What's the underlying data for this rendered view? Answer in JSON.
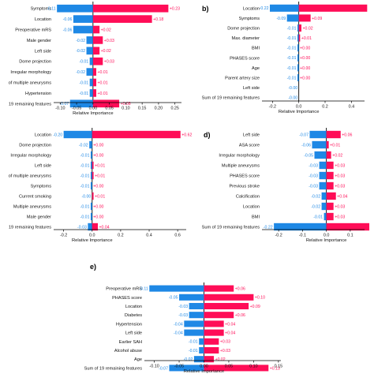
{
  "colors": {
    "positive": "#ff0d57",
    "negative": "#1e88e5",
    "axis": "#000000"
  },
  "chart_data": [
    {
      "panel": "a",
      "type": "bar",
      "orientation": "horizontal",
      "xlabel": "Relative Importance",
      "xlim": [
        -0.12,
        0.27
      ],
      "xticks": [
        "-0.10",
        "-0.05",
        "0.00",
        "0.05",
        "0.10",
        "0.15",
        "0.20",
        "0.25"
      ],
      "xtick_values": [
        -0.1,
        -0.05,
        0.0,
        0.05,
        0.1,
        0.15,
        0.2,
        0.25
      ],
      "categories": [
        "Symptoms",
        "Location",
        "Preoperative mRS",
        "Male gender",
        "Left side",
        "Dome projection",
        "Irregular morphology",
        "of multiple aneurysms",
        "Hypertension",
        "19 remaining features"
      ],
      "segments": [
        [
          -0.11,
          0.23
        ],
        [
          -0.06,
          0.18
        ],
        [
          -0.06,
          0.02
        ],
        [
          -0.02,
          0.03
        ],
        [
          -0.02,
          0.02
        ],
        [
          -0.01,
          0.03
        ],
        [
          -0.02,
          0.01
        ],
        [
          -0.01,
          0.01
        ],
        [
          -0.01,
          0.01
        ],
        [
          -0.07,
          0.08
        ]
      ],
      "labels": [
        [
          "-0.11",
          "+0.23"
        ],
        [
          "-0.06",
          "+0.18"
        ],
        [
          "-0.06",
          "+0.02"
        ],
        [
          "-0.02",
          "+0.03"
        ],
        [
          "-0.02",
          "+0.02"
        ],
        [
          "-0.01",
          "+0.03"
        ],
        [
          "-0.02",
          "+0.01"
        ],
        [
          "-0.01",
          "+0.01"
        ],
        [
          "-0.01",
          "+0.01"
        ],
        [
          "-0.07",
          "+0.08"
        ]
      ]
    },
    {
      "panel": "b",
      "panel_label": "b)",
      "type": "bar",
      "orientation": "horizontal",
      "xlabel": "Relative Importance",
      "xlim": [
        -0.28,
        0.5
      ],
      "xticks": [
        "-0.2",
        "0.0",
        "0.2",
        "0.4"
      ],
      "xtick_values": [
        -0.2,
        0.0,
        0.2,
        0.4
      ],
      "categories": [
        "Location",
        "Symptoms",
        "Dome projection",
        "Max. diameter",
        "BMI",
        "PHASES score",
        "Age",
        "Parent artery size",
        "Left side",
        "Sum of 19 remaining features"
      ],
      "segments": [
        [
          -0.22,
          0.52
        ],
        [
          -0.09,
          0.09
        ],
        [
          -0.01,
          0.02
        ],
        [
          -0.01,
          0.01
        ],
        [
          -0.01,
          0.0
        ],
        [
          -0.01,
          0.0
        ],
        [
          -0.01,
          0.0
        ],
        [
          -0.01,
          0.0
        ],
        [
          -0.0,
          0.0
        ],
        [
          -0.0,
          0.0
        ]
      ],
      "labels": [
        [
          "-0.22",
          ""
        ],
        [
          "-0.09",
          "+0.09"
        ],
        [
          "-0.01",
          "+0.02"
        ],
        [
          "-0.01",
          "+0.01"
        ],
        [
          "-0.01",
          "+0.00"
        ],
        [
          "-0.01",
          "+0.00"
        ],
        [
          "-0.01",
          "+0.00"
        ],
        [
          "-0.01",
          "+0.00"
        ],
        [
          "-0.00",
          ""
        ],
        [
          "-0.00",
          ""
        ]
      ]
    },
    {
      "panel": "c",
      "type": "bar",
      "orientation": "horizontal",
      "xlabel": "Relative Importance",
      "xlim": [
        -0.27,
        0.66
      ],
      "xticks": [
        "-0.2",
        "0.0",
        "0.2",
        "0.4",
        "0.6"
      ],
      "xtick_values": [
        -0.2,
        0.0,
        0.2,
        0.4,
        0.6
      ],
      "categories": [
        "Location",
        "Dome projection",
        "Irregular morphology",
        "Left side",
        "of multiple aneurysms",
        "Symptoms",
        "Current smoking",
        "Multiple aneurysms",
        "Male gender",
        "19 remaining features"
      ],
      "segments": [
        [
          -0.2,
          0.62
        ],
        [
          -0.02,
          0.0
        ],
        [
          -0.01,
          0.0
        ],
        [
          -0.01,
          0.01
        ],
        [
          -0.01,
          0.01
        ],
        [
          -0.01,
          0.0
        ],
        [
          -0.0,
          0.01
        ],
        [
          -0.01,
          0.0
        ],
        [
          -0.01,
          0.0
        ],
        [
          -0.03,
          0.04
        ]
      ],
      "labels": [
        [
          "-0.20",
          "+0.62"
        ],
        [
          "-0.02",
          "+0.00"
        ],
        [
          "-0.01",
          "+0.00"
        ],
        [
          "-0.01",
          "+0.01"
        ],
        [
          "-0.01",
          "+0.01"
        ],
        [
          "-0.01",
          "+0.00"
        ],
        [
          "-0.00",
          "+0.01"
        ],
        [
          "-0.01",
          "+0.00"
        ],
        [
          "-0.01",
          "+0.00"
        ],
        [
          "-0.03",
          "+0.04"
        ]
      ]
    },
    {
      "panel": "d",
      "panel_label": "d)",
      "type": "bar",
      "orientation": "horizontal",
      "xlabel": "Relative Importance",
      "xlim": [
        -0.27,
        0.16
      ],
      "xticks": [
        "-0.2",
        "-0.1",
        "0.0",
        "0.1"
      ],
      "xtick_values": [
        -0.2,
        -0.1,
        0.0,
        0.1
      ],
      "categories": [
        "Left side",
        "ASA score",
        "Irregular morphology",
        "Multiple aneurysms",
        "PHASES score",
        "Previous stroke",
        "Calcification",
        "Location",
        "BMI",
        "Sum of 19 remaining features"
      ],
      "segments": [
        [
          -0.07,
          0.06
        ],
        [
          -0.06,
          0.01
        ],
        [
          -0.05,
          0.02
        ],
        [
          -0.03,
          0.03
        ],
        [
          -0.03,
          0.03
        ],
        [
          -0.03,
          0.03
        ],
        [
          -0.02,
          0.04
        ],
        [
          -0.02,
          0.03
        ],
        [
          -0.01,
          0.03
        ],
        [
          -0.22,
          0.18
        ]
      ],
      "labels": [
        [
          "-0.07",
          "+0.06"
        ],
        [
          "-0.06",
          "+0.01"
        ],
        [
          "-0.05",
          "+0.02"
        ],
        [
          "-0.03",
          "+0.03"
        ],
        [
          "-0.03",
          "+0.03"
        ],
        [
          "-0.03",
          "+0.03"
        ],
        [
          "-0.02",
          "+0.04"
        ],
        [
          "-0.02",
          "+0.03"
        ],
        [
          "-0.01",
          "+0.03"
        ],
        [
          "-0.22",
          ""
        ]
      ]
    },
    {
      "panel": "e",
      "panel_label": "e)",
      "type": "bar",
      "orientation": "horizontal",
      "xlabel": "Relative Importance",
      "xlim": [
        -0.12,
        0.155
      ],
      "xticks": [
        "-0.10",
        "-0.05",
        "0.00",
        "0.05",
        "0.10",
        "0.15"
      ],
      "xtick_values": [
        -0.1,
        -0.05,
        0.0,
        0.05,
        0.1,
        0.15
      ],
      "categories": [
        "Preoperative mRS",
        "PHASES score",
        "Location",
        "Diabetes",
        "Hypertension",
        "Left side",
        "Earlier SAH",
        "Alcohol abuse",
        "Age",
        "Sum of 19 remaining features"
      ],
      "segments": [
        [
          -0.11,
          0.06
        ],
        [
          -0.05,
          0.1
        ],
        [
          -0.03,
          0.09
        ],
        [
          -0.03,
          0.06
        ],
        [
          -0.04,
          0.04
        ],
        [
          -0.04,
          0.04
        ],
        [
          -0.01,
          0.03
        ],
        [
          -0.01,
          0.03
        ],
        [
          -0.02,
          0.02
        ],
        [
          -0.07,
          0.13
        ]
      ],
      "labels": [
        [
          "-0.11",
          "+0.06"
        ],
        [
          "-0.05",
          "+0.10"
        ],
        [
          "-0.03",
          "+0.09"
        ],
        [
          "-0.03",
          "+0.06"
        ],
        [
          "-0.04",
          "+0.04"
        ],
        [
          "-0.04",
          "+0.04"
        ],
        [
          "-0.01",
          "+0.03"
        ],
        [
          "-0.01",
          "+0.03"
        ],
        [
          "-0.02",
          "+0.02"
        ],
        [
          "-0.07",
          "+0.13"
        ]
      ]
    }
  ]
}
